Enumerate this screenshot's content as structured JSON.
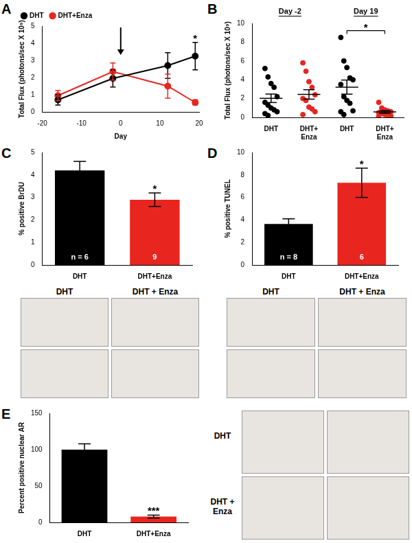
{
  "chart_data": [
    {
      "panel": "A",
      "type": "line",
      "x_label": "Day",
      "y_label": "Total Flux (photons/sec X 10⁹)",
      "x": [
        -16,
        -2,
        12,
        19
      ],
      "xlim": [
        -20,
        20
      ],
      "xticks": [
        -20,
        -10,
        0,
        10,
        20
      ],
      "ylim": [
        0,
        5
      ],
      "yticks": [
        0,
        1,
        2,
        3,
        4,
        5
      ],
      "grid": false,
      "legend": "upper left",
      "series": [
        {
          "name": "DHT",
          "color": "#000000",
          "marker": "circle",
          "values": [
            0.7,
            1.95,
            2.7,
            3.25
          ],
          "errors": [
            0.3,
            0.5,
            0.75,
            0.8
          ]
        },
        {
          "name": "DHT+Enza",
          "color": "#e8251f",
          "marker": "circle",
          "values": [
            0.95,
            2.35,
            1.5,
            0.55
          ],
          "errors": [
            0.3,
            0.5,
            0.7,
            0.15
          ]
        }
      ],
      "annotations": [
        {
          "marker": "arrow",
          "x": 0
        },
        {
          "text": "*",
          "x": 19
        }
      ]
    },
    {
      "panel": "B",
      "type": "scatter",
      "y_label": "Total Flux (photons/sec X 10⁹)",
      "groups": [
        "Day -2",
        "Day 19"
      ],
      "categories": [
        "DHT",
        "DHT+ Enza",
        "DHT",
        "DHT+ Enza"
      ],
      "colors": [
        "#000000",
        "#e8251f",
        "#000000",
        "#e8251f"
      ],
      "points": [
        [
          5.2,
          4.3,
          3.6,
          3.2,
          2.2,
          1.6,
          1.3,
          1.0,
          0.8,
          0.6,
          0.4,
          0.2
        ],
        [
          5.8,
          4.9,
          3.8,
          3.2,
          2.4,
          2.0,
          1.8,
          1.1,
          0.9,
          0.6,
          0.3
        ],
        [
          8.5,
          6.0,
          5.3,
          4.2,
          4.0,
          3.5,
          2.2,
          1.8,
          1.5,
          0.7,
          0.6,
          0.3
        ],
        [
          1.6,
          1.0,
          0.8,
          0.7,
          0.6,
          0.5,
          0.4,
          0.3,
          0.2,
          0.15,
          0.1
        ]
      ],
      "means": [
        2.03,
        2.44,
        3.22,
        0.58
      ],
      "errors": [
        0.45,
        0.5,
        0.75,
        0.14
      ],
      "ylim": [
        0,
        10
      ],
      "yticks": [
        0,
        2,
        4,
        6,
        8,
        10
      ],
      "grid": false,
      "annotations": [
        {
          "text": "*",
          "between": [
            2,
            3
          ]
        }
      ]
    },
    {
      "panel": "C",
      "type": "bar",
      "y_label": "% positive BrDU",
      "categories": [
        "DHT",
        "DHT+Enza"
      ],
      "values": [
        4.2,
        2.9
      ],
      "errors": [
        0.4,
        0.3
      ],
      "colors": [
        "#000000",
        "#e8251f"
      ],
      "ylim": [
        0,
        5
      ],
      "yticks": [
        0,
        1,
        2,
        3,
        4,
        5
      ],
      "grid": false,
      "annotations": [
        {
          "text": "n = 6",
          "category": "DHT",
          "position": "inside"
        },
        {
          "text": "9",
          "category": "DHT+Enza",
          "position": "inside"
        },
        {
          "text": "*",
          "category": "DHT+Enza"
        }
      ]
    },
    {
      "panel": "D",
      "type": "bar",
      "y_label": "% positive TUNEL",
      "categories": [
        "DHT",
        "DHT+Enza"
      ],
      "values": [
        3.65,
        7.3
      ],
      "errors": [
        0.45,
        1.3
      ],
      "colors": [
        "#000000",
        "#e8251f"
      ],
      "ylim": [
        0,
        10
      ],
      "yticks": [
        0,
        2,
        4,
        6,
        8,
        10
      ],
      "grid": false,
      "annotations": [
        {
          "text": "n = 8",
          "category": "DHT",
          "position": "inside"
        },
        {
          "text": "6",
          "category": "DHT+Enza",
          "position": "inside"
        },
        {
          "text": "*",
          "category": "DHT+Enza"
        }
      ]
    },
    {
      "panel": "E",
      "type": "bar",
      "y_label": "Percent positive nuclear AR",
      "categories": [
        "DHT",
        "DHT+Enza"
      ],
      "values": [
        100,
        8
      ],
      "errors": [
        8,
        2
      ],
      "colors": [
        "#000000",
        "#e8251f"
      ],
      "ylim": [
        0,
        150
      ],
      "yticks": [
        0,
        50,
        100,
        150
      ],
      "grid": false,
      "annotations": [
        {
          "text": "***",
          "category": "DHT+Enza"
        }
      ]
    }
  ],
  "images": [
    {
      "panel": "C",
      "column_labels": [
        "DHT",
        "DHT + Enza"
      ]
    },
    {
      "panel": "D",
      "column_labels": [
        "DHT",
        "DHT + Enza"
      ]
    },
    {
      "panel": "E",
      "row_labels": [
        "DHT",
        "DHT + Enza"
      ]
    }
  ]
}
